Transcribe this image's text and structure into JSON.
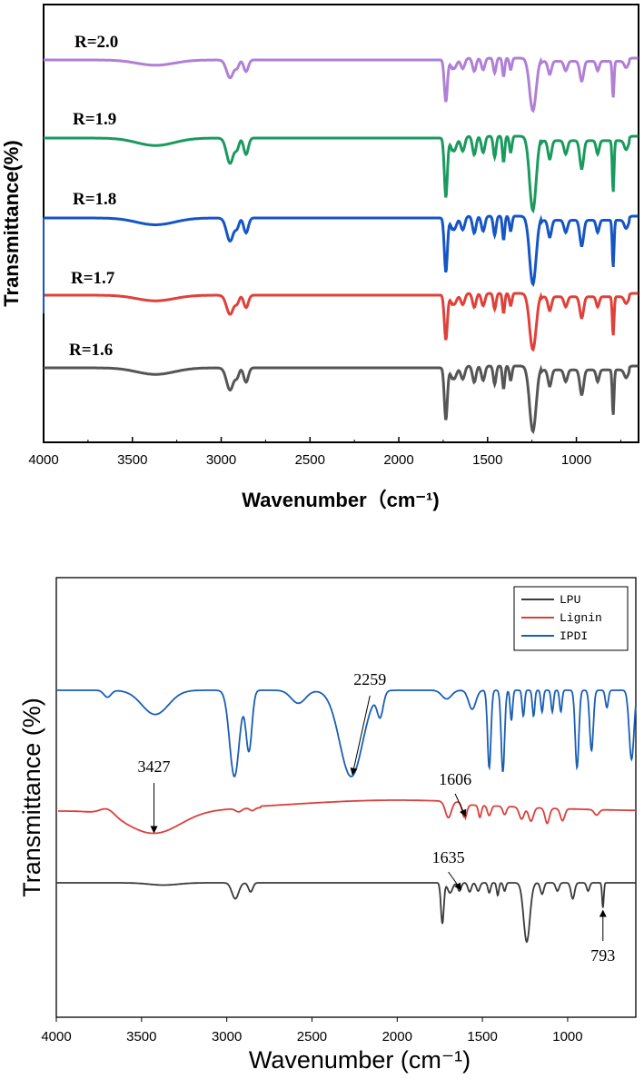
{
  "chart_data": [
    {
      "type": "line",
      "title": "",
      "xlabel": "Wavenumber（cm⁻¹)",
      "ylabel": "Transmittance(%)",
      "xlim": [
        4000,
        650
      ],
      "x_reversed": true,
      "x_ticks": [
        4000,
        3500,
        3000,
        2500,
        2000,
        1500,
        1000
      ],
      "grid": false,
      "series": [
        {
          "name": "R=2.0",
          "color": "#b07fd6"
        },
        {
          "name": "R=1.9",
          "color": "#1a9a5e"
        },
        {
          "name": "R=1.8",
          "color": "#1555c4"
        },
        {
          "name": "R=1.7",
          "color": "#e0403a"
        },
        {
          "name": "R=1.6",
          "color": "#555555"
        }
      ]
    },
    {
      "type": "line",
      "title": "",
      "xlabel": "Wavenumber (cm⁻¹)",
      "ylabel": "Transmittance (%)",
      "xlim": [
        4000,
        600
      ],
      "x_reversed": true,
      "x_ticks": [
        4000,
        3500,
        3000,
        2500,
        2000,
        1500,
        1000
      ],
      "grid": false,
      "legend_position": "top-right",
      "series": [
        {
          "name": "LPU",
          "color": "#3a3a3a"
        },
        {
          "name": "Lignin",
          "color": "#d9413c"
        },
        {
          "name": "IPDI",
          "color": "#1a5fb4"
        }
      ],
      "annotations": [
        {
          "text": "2259",
          "x": 2259,
          "series": "IPDI"
        },
        {
          "text": "3427",
          "x": 3427,
          "series": "Lignin"
        },
        {
          "text": "1606",
          "x": 1606,
          "series": "Lignin"
        },
        {
          "text": "1635",
          "x": 1635,
          "series": "LPU"
        },
        {
          "text": "793",
          "x": 793,
          "series": "LPU"
        }
      ]
    }
  ]
}
